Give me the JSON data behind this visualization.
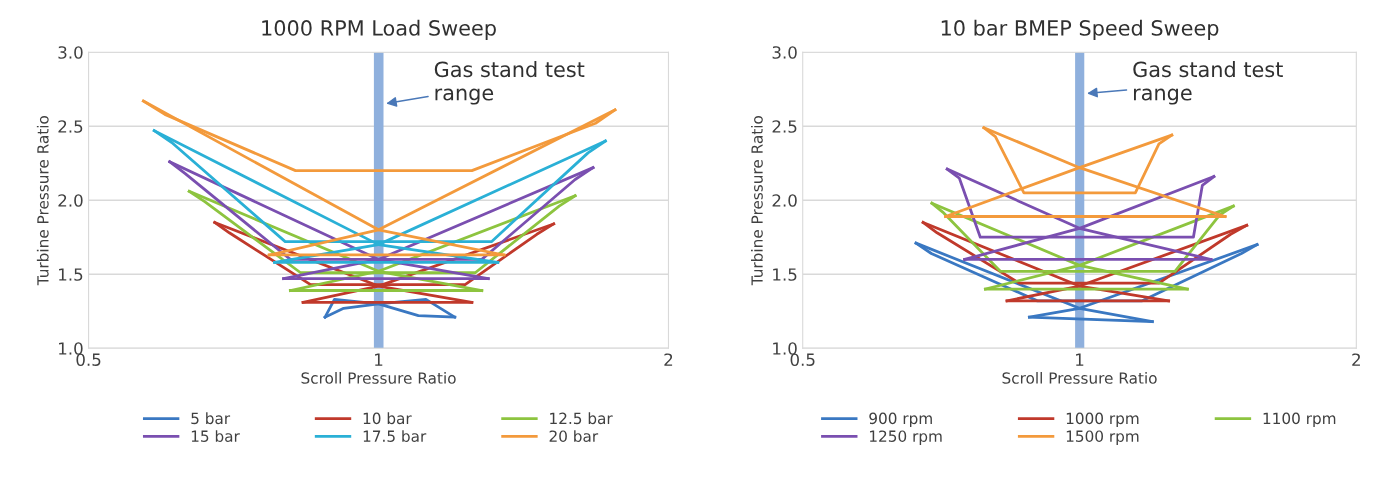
{
  "chart_data": [
    {
      "type": "line",
      "title": "1000 RPM Load Sweep",
      "xlabel": "Scroll Pressure Ratio",
      "ylabel": "Turbine Pressure Ratio",
      "log": "x",
      "xlim": [
        0.5,
        2
      ],
      "xticks": [
        0.5,
        1,
        2
      ],
      "ylim": [
        1,
        3
      ],
      "yticks": [
        {
          "value": 1,
          "label": "1.0"
        },
        {
          "value": 1.5,
          "label": "1.5"
        },
        {
          "value": 2,
          "label": "2.0"
        },
        {
          "value": 2.5,
          "label": "2.5"
        },
        {
          "value": 3,
          "label": "3.0"
        }
      ],
      "grid": "y",
      "legend": "bottom",
      "marker": "none",
      "line_style": "solid",
      "bands": [
        {
          "axis": "x",
          "from": 0.989,
          "to": 1.012,
          "color": "#8fb0dd"
        }
      ],
      "annotations": [
        {
          "text": "Gas stand test\nrange",
          "x": 1.012,
          "y": 2.65
        }
      ],
      "series": [
        {
          "name": "5 bar",
          "color": "#3a78c2",
          "x": [
            0.88,
            0.92,
            1,
            1.12,
            1.2
          ],
          "values": [
            1.21,
            1.27,
            1.3,
            1.33,
            1.21
          ]
        },
        {
          "color": "#3a78c2",
          "x": [
            1.2,
            1.1,
            1,
            0.9,
            0.88
          ],
          "values": [
            1.21,
            1.22,
            1.3,
            1.33,
            1.21
          ]
        },
        {
          "name": "10 bar",
          "color": "#c0392b",
          "x": [
            0.676,
            1,
            1.25
          ],
          "values": [
            1.85,
            1.42,
            1.31
          ]
        },
        {
          "color": "#c0392b",
          "x": [
            1.25,
            0.835
          ],
          "values": [
            1.31,
            1.31
          ]
        },
        {
          "color": "#c0392b",
          "x": [
            0.835,
            1,
            1.52
          ],
          "values": [
            1.31,
            1.42,
            1.84
          ]
        },
        {
          "color": "#c0392b",
          "x": [
            1.52,
            1.46,
            1.23,
            0.85,
            0.7,
            0.676
          ],
          "values": [
            1.84,
            1.77,
            1.43,
            1.43,
            1.78,
            1.85
          ]
        },
        {
          "name": "12.5 bar",
          "color": "#8dc43f",
          "x": [
            0.636,
            1,
            1.28
          ],
          "values": [
            2.06,
            1.52,
            1.39
          ]
        },
        {
          "color": "#8dc43f",
          "x": [
            1.28,
            0.81
          ],
          "values": [
            1.39,
            1.39
          ]
        },
        {
          "color": "#8dc43f",
          "x": [
            0.81,
            1,
            1.6
          ],
          "values": [
            1.39,
            1.52,
            2.03
          ]
        },
        {
          "color": "#8dc43f",
          "x": [
            1.6,
            1.54,
            1.26,
            0.83,
            0.66,
            0.636
          ],
          "values": [
            2.03,
            1.96,
            1.51,
            1.51,
            1.99,
            2.06
          ]
        },
        {
          "name": "15 bar",
          "color": "#7a4fb0",
          "x": [
            0.607,
            1,
            1.3
          ],
          "values": [
            2.26,
            1.6,
            1.47
          ]
        },
        {
          "color": "#7a4fb0",
          "x": [
            1.3,
            0.797
          ],
          "values": [
            1.47,
            1.47
          ]
        },
        {
          "color": "#7a4fb0",
          "x": [
            0.797,
            1,
            1.67
          ],
          "values": [
            1.47,
            1.6,
            2.22
          ]
        },
        {
          "color": "#7a4fb0",
          "x": [
            1.67,
            1.6,
            1.28,
            0.81,
            0.63,
            0.607
          ],
          "values": [
            2.22,
            2.14,
            1.6,
            1.6,
            2.18,
            2.26
          ]
        },
        {
          "name": "17.5 bar",
          "color": "#2ab0d6",
          "x": [
            0.585,
            1,
            1.33
          ],
          "values": [
            2.47,
            1.7,
            1.58
          ]
        },
        {
          "color": "#2ab0d6",
          "x": [
            1.33,
            0.78
          ],
          "values": [
            1.58,
            1.58
          ]
        },
        {
          "color": "#2ab0d6",
          "x": [
            0.78,
            1,
            1.72
          ],
          "values": [
            1.58,
            1.7,
            2.4
          ]
        },
        {
          "color": "#2ab0d6",
          "x": [
            1.72,
            1.65,
            1.31,
            0.8,
            0.61,
            0.585
          ],
          "values": [
            2.4,
            2.32,
            1.72,
            1.72,
            2.39,
            2.47
          ]
        },
        {
          "name": "20 bar",
          "color": "#f39a3c",
          "x": [
            0.57,
            1,
            1.35
          ],
          "values": [
            2.67,
            1.8,
            1.63
          ]
        },
        {
          "color": "#f39a3c",
          "x": [
            1.35,
            0.77
          ],
          "values": [
            1.63,
            1.63
          ]
        },
        {
          "color": "#f39a3c",
          "x": [
            0.77,
            1,
            1.76
          ],
          "values": [
            1.63,
            1.8,
            2.61
          ]
        },
        {
          "color": "#f39a3c",
          "x": [
            1.76,
            1.68,
            1.25,
            0.82,
            0.6,
            0.57
          ],
          "values": [
            2.61,
            2.52,
            2.2,
            2.2,
            2.58,
            2.67
          ]
        }
      ]
    },
    {
      "type": "line",
      "title": "10 bar BMEP Speed Sweep",
      "xlabel": "Scroll Pressure Ratio",
      "ylabel": "Turbine Pressure Ratio",
      "log": "x",
      "xlim": [
        0.5,
        2
      ],
      "xticks": [
        0.5,
        1,
        2
      ],
      "ylim": [
        1,
        3
      ],
      "yticks": [
        {
          "value": 1,
          "label": "1.0"
        },
        {
          "value": 1.5,
          "label": "1.5"
        },
        {
          "value": 2,
          "label": "2.0"
        },
        {
          "value": 2.5,
          "label": "2.5"
        },
        {
          "value": 3,
          "label": "3.0"
        }
      ],
      "grid": "y",
      "legend": "bottom",
      "marker": "none",
      "line_style": "solid",
      "bands": [
        {
          "axis": "x",
          "from": 0.989,
          "to": 1.012,
          "color": "#8fb0dd"
        }
      ],
      "annotations": [
        {
          "text": "Gas stand test\nrange",
          "x": 1.012,
          "y": 2.72
        }
      ],
      "series": [
        {
          "name": "900 rpm",
          "color": "#3a78c2",
          "x": [
            0.664,
            1,
            1.2
          ],
          "values": [
            1.71,
            1.27,
            1.18
          ]
        },
        {
          "color": "#3a78c2",
          "x": [
            1.2,
            0.882
          ],
          "values": [
            1.18,
            1.21
          ]
        },
        {
          "color": "#3a78c2",
          "x": [
            0.882,
            1,
            1.56
          ],
          "values": [
            1.21,
            1.27,
            1.7
          ]
        },
        {
          "color": "#3a78c2",
          "x": [
            1.56,
            1.5,
            1.17,
            0.9,
            0.69,
            0.664
          ],
          "values": [
            1.7,
            1.64,
            1.32,
            1.32,
            1.64,
            1.71
          ]
        },
        {
          "name": "1000 rpm",
          "color": "#c0392b",
          "x": [
            0.676,
            1,
            1.25
          ],
          "values": [
            1.85,
            1.42,
            1.32
          ]
        },
        {
          "color": "#c0392b",
          "x": [
            1.25,
            0.834
          ],
          "values": [
            1.32,
            1.32
          ]
        },
        {
          "color": "#c0392b",
          "x": [
            0.834,
            1,
            1.52
          ],
          "values": [
            1.32,
            1.42,
            1.83
          ]
        },
        {
          "color": "#c0392b",
          "x": [
            1.52,
            1.46,
            1.22,
            0.86,
            0.7,
            0.676
          ],
          "values": [
            1.83,
            1.77,
            1.44,
            1.44,
            1.78,
            1.85
          ]
        },
        {
          "name": "1100 rpm",
          "color": "#8dc43f",
          "x": [
            0.691,
            1,
            1.31
          ],
          "values": [
            1.98,
            1.56,
            1.4
          ]
        },
        {
          "color": "#8dc43f",
          "x": [
            1.31,
            0.79
          ],
          "values": [
            1.4,
            1.4
          ]
        },
        {
          "color": "#8dc43f",
          "x": [
            0.79,
            1,
            1.47
          ],
          "values": [
            1.4,
            1.56,
            1.96
          ]
        },
        {
          "color": "#8dc43f",
          "x": [
            1.47,
            1.42,
            1.27,
            0.82,
            0.71,
            0.691
          ],
          "values": [
            1.96,
            1.9,
            1.52,
            1.52,
            1.92,
            1.98
          ]
        },
        {
          "name": "1250 rpm",
          "color": "#7a4fb0",
          "x": [
            0.718,
            1,
            1.39
          ],
          "values": [
            2.21,
            1.81,
            1.6
          ]
        },
        {
          "color": "#7a4fb0",
          "x": [
            1.39,
            0.75
          ],
          "values": [
            1.6,
            1.6
          ]
        },
        {
          "color": "#7a4fb0",
          "x": [
            0.75,
            1,
            1.4
          ],
          "values": [
            1.6,
            1.81,
            2.16
          ]
        },
        {
          "color": "#7a4fb0",
          "x": [
            1.4,
            1.36,
            1.33,
            0.78,
            0.74,
            0.718
          ],
          "values": [
            2.16,
            2.1,
            1.75,
            1.75,
            2.15,
            2.21
          ]
        },
        {
          "name": "1500 rpm",
          "color": "#f39a3c",
          "x": [
            0.787,
            1,
            1.44
          ],
          "values": [
            2.49,
            2.22,
            1.89
          ]
        },
        {
          "color": "#f39a3c",
          "x": [
            1.44,
            0.715
          ],
          "values": [
            1.89,
            1.89
          ]
        },
        {
          "color": "#f39a3c",
          "x": [
            0.715,
            1,
            1.26
          ],
          "values": [
            1.89,
            2.22,
            2.44
          ]
        },
        {
          "color": "#f39a3c",
          "x": [
            1.26,
            1.22,
            1.15,
            0.87,
            0.81,
            0.787
          ],
          "values": [
            2.44,
            2.38,
            2.05,
            2.05,
            2.43,
            2.49
          ]
        }
      ]
    }
  ]
}
